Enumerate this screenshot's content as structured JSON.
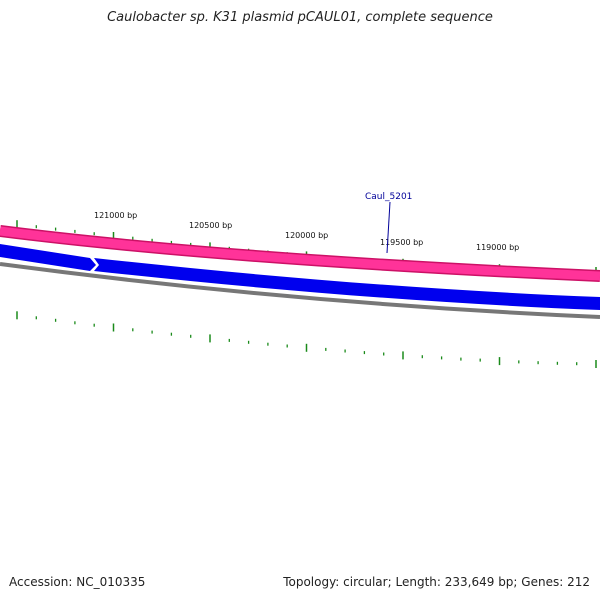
{
  "title": "Caulobacter sp. K31 plasmid pCAUL01, complete sequence",
  "accession": {
    "label": "Accession:",
    "value": "NC_010335"
  },
  "summary": {
    "topology_label": "Topology:",
    "topology": "circular",
    "length_label": "Length:",
    "length": "233,649 bp",
    "genes_label": "Genes:",
    "genes": "212"
  },
  "position_labels": [
    "121000 bp",
    "120500 bp",
    "120000 bp",
    "119500 bp",
    "119000 bp"
  ],
  "gene_label": "Caul_5201",
  "colors": {
    "forward_track": "#ff3399",
    "forward_track_dark": "#cc1166",
    "reverse_track": "#0000ee",
    "backbone": "#777777",
    "ticks": "#1a8a1a",
    "gene_label": "#000099"
  }
}
